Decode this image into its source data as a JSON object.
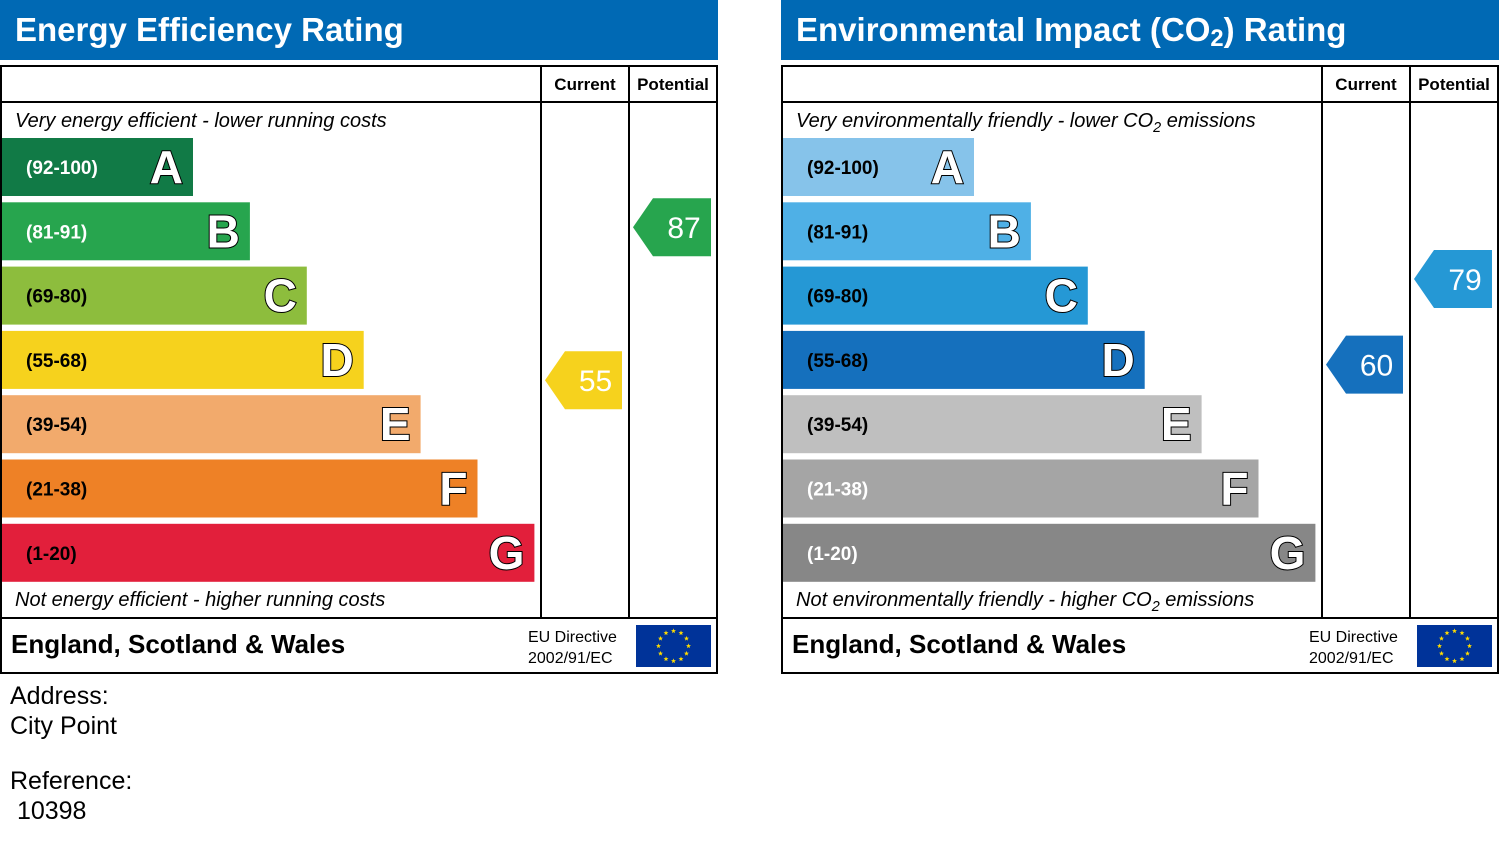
{
  "chart_data": [
    {
      "type": "bar",
      "title": "Energy Efficiency Rating",
      "columns": {
        "current": "Current",
        "potential": "Potential"
      },
      "top_note": "Very energy efficient - lower running costs",
      "bottom_note": "Not energy efficient - higher running costs",
      "bands": [
        {
          "range": "(92-100)",
          "letter": "A",
          "color": "#117a46"
        },
        {
          "range": "(81-91)",
          "letter": "B",
          "color": "#27a54e"
        },
        {
          "range": "(69-80)",
          "letter": "C",
          "color": "#8dbd3d"
        },
        {
          "range": "(55-68)",
          "letter": "D",
          "color": "#f6d21d"
        },
        {
          "range": "(39-54)",
          "letter": "E",
          "color": "#f2aa6c"
        },
        {
          "range": "(21-38)",
          "letter": "F",
          "color": "#ee8126"
        },
        {
          "range": "(1-20)",
          "letter": "G",
          "color": "#e21f3b"
        }
      ],
      "current": {
        "value": 55,
        "color": "#f6d21d"
      },
      "potential": {
        "value": 87,
        "color": "#27a54e"
      },
      "region": "England, Scotland & Wales",
      "directive": [
        "EU Directive",
        "2002/91/EC"
      ]
    },
    {
      "type": "bar",
      "title": "Environmental Impact (CO₂) Rating",
      "columns": {
        "current": "Current",
        "potential": "Potential"
      },
      "top_note": "Very environmentally friendly - lower CO₂ emissions",
      "bottom_note": "Not environmentally friendly - higher CO₂ emissions",
      "bands": [
        {
          "range": "(92-100)",
          "letter": "A",
          "color": "#86c3ea"
        },
        {
          "range": "(81-91)",
          "letter": "B",
          "color": "#4fb0e6"
        },
        {
          "range": "(69-80)",
          "letter": "C",
          "color": "#2598d5"
        },
        {
          "range": "(55-68)",
          "letter": "D",
          "color": "#1570bd"
        },
        {
          "range": "(39-54)",
          "letter": "E",
          "color": "#bfbfbf"
        },
        {
          "range": "(21-38)",
          "letter": "F",
          "color": "#a5a5a5"
        },
        {
          "range": "(1-20)",
          "letter": "G",
          "color": "#878787"
        }
      ],
      "current": {
        "value": 60,
        "color": "#1570bd"
      },
      "potential": {
        "value": 79,
        "color": "#2598d5"
      },
      "region": "England, Scotland & Wales",
      "directive": [
        "EU Directive",
        "2002/91/EC"
      ]
    }
  ],
  "colors": {
    "header": "#0069b4",
    "eu_flag": "#003399",
    "eu_star": "#ffdd00"
  },
  "address": {
    "label": "Address:",
    "value": "City Point"
  },
  "reference": {
    "label": "Reference:",
    "value": " 10398"
  }
}
